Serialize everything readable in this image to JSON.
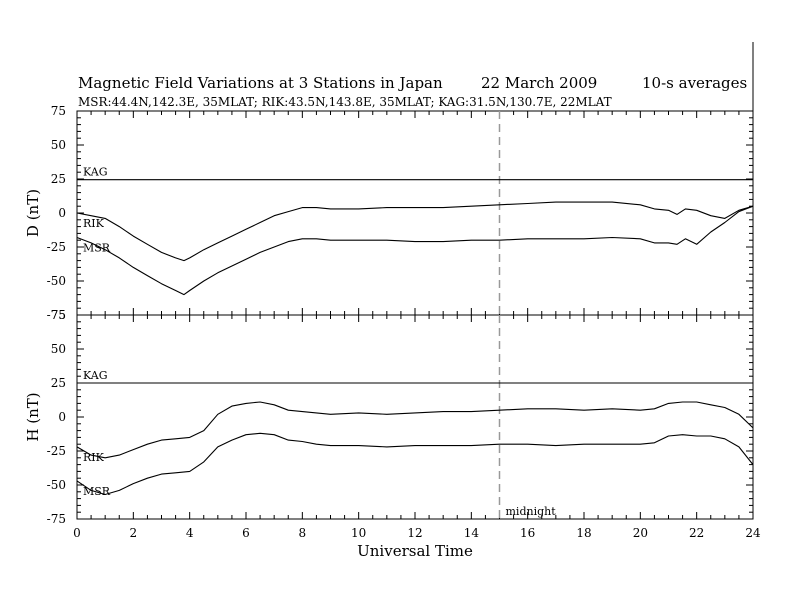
{
  "title": {
    "main": "Magnetic Field Variations at 3 Stations in Japan",
    "date": "22 March   2009",
    "avg": "10-s averages",
    "stations": "MSR:44.4N,142.3E, 35MLAT;  RIK:43.5N,143.8E, 35MLAT;  KAG:31.5N,130.7E, 22MLAT"
  },
  "chart_data": [
    {
      "type": "line",
      "panel": "D",
      "ylabel": "D (nT)",
      "ylim": [
        -75,
        75
      ],
      "yticks": [
        "75",
        "50",
        "25",
        "0",
        "-25",
        "-50",
        "-75"
      ],
      "xlim": [
        0,
        24
      ],
      "series": [
        {
          "name": "KAG",
          "x": [
            0,
            24
          ],
          "y": [
            24.5,
            24.5
          ]
        },
        {
          "name": "RIK",
          "x": [
            0,
            0.5,
            1,
            1.5,
            2,
            2.5,
            3,
            3.5,
            3.8,
            4,
            4.5,
            5,
            5.5,
            6,
            6.5,
            7,
            7.5,
            8,
            8.5,
            9,
            10,
            11,
            12,
            13,
            14,
            15,
            16,
            17,
            18,
            19,
            20,
            20.5,
            21,
            21.3,
            21.6,
            22,
            22.5,
            23,
            23.5,
            24
          ],
          "y": [
            0,
            -2,
            -4,
            -10,
            -17,
            -23,
            -29,
            -33,
            -35,
            -33,
            -27,
            -22,
            -17,
            -12,
            -7,
            -2,
            1,
            4,
            4,
            3,
            3,
            4,
            4,
            4,
            5,
            6,
            7,
            8,
            8,
            8,
            6,
            3,
            2,
            -1,
            3,
            2,
            -2,
            -4,
            2,
            5
          ]
        },
        {
          "name": "MSR",
          "x": [
            0,
            0.5,
            1,
            1.5,
            2,
            2.5,
            3,
            3.5,
            3.8,
            4,
            4.5,
            5,
            5.5,
            6,
            6.5,
            7,
            7.5,
            8,
            8.5,
            9,
            10,
            11,
            12,
            13,
            14,
            15,
            16,
            17,
            18,
            19,
            20,
            20.5,
            21,
            21.3,
            21.6,
            22,
            22.5,
            23,
            23.5,
            24
          ],
          "y": [
            -18,
            -22,
            -27,
            -33,
            -40,
            -46,
            -52,
            -57,
            -60,
            -57,
            -50,
            -44,
            -39,
            -34,
            -29,
            -25,
            -21,
            -19,
            -19,
            -20,
            -20,
            -20,
            -21,
            -21,
            -20,
            -20,
            -19,
            -19,
            -19,
            -18,
            -19,
            -22,
            -22,
            -23,
            -19,
            -23,
            -14,
            -7,
            1,
            5
          ]
        }
      ],
      "annotations": [
        "KAG",
        "RIK",
        "MSR"
      ]
    },
    {
      "type": "line",
      "panel": "H",
      "ylabel": "H (nT)",
      "ylim": [
        -75,
        75
      ],
      "yticks": [
        "75",
        "50",
        "25",
        "0",
        "-25",
        "-50",
        "-75"
      ],
      "xlim": [
        0,
        24
      ],
      "xlabel": "Universal Time",
      "xticks": [
        "0",
        "2",
        "4",
        "6",
        "8",
        "10",
        "12",
        "14",
        "16",
        "18",
        "20",
        "22",
        "24"
      ],
      "series": [
        {
          "name": "KAG",
          "x": [
            0,
            24
          ],
          "y": [
            25,
            25
          ]
        },
        {
          "name": "RIK",
          "x": [
            0,
            0.5,
            1,
            1.5,
            2,
            2.5,
            3,
            3.5,
            4,
            4.5,
            5,
            5.5,
            6,
            6.5,
            7,
            7.5,
            8,
            8.5,
            9,
            10,
            11,
            12,
            13,
            14,
            15,
            16,
            17,
            18,
            19,
            20,
            20.5,
            21,
            21.5,
            22,
            22.5,
            23,
            23.5,
            24
          ],
          "y": [
            -22,
            -28,
            -30,
            -28,
            -24,
            -20,
            -17,
            -16,
            -15,
            -10,
            2,
            8,
            10,
            11,
            9,
            5,
            4,
            3,
            2,
            3,
            2,
            3,
            4,
            4,
            5,
            6,
            6,
            5,
            6,
            5,
            6,
            10,
            11,
            11,
            9,
            7,
            2,
            -8
          ]
        },
        {
          "name": "MSR",
          "x": [
            0,
            0.5,
            1,
            1.5,
            2,
            2.5,
            3,
            3.5,
            4,
            4.5,
            5,
            5.5,
            6,
            6.5,
            7,
            7.5,
            8,
            8.5,
            9,
            10,
            11,
            12,
            13,
            14,
            15,
            16,
            17,
            18,
            19,
            20,
            20.5,
            21,
            21.5,
            22,
            22.5,
            23,
            23.5,
            24
          ],
          "y": [
            -47,
            -54,
            -57,
            -54,
            -49,
            -45,
            -42,
            -41,
            -40,
            -33,
            -22,
            -17,
            -13,
            -12,
            -13,
            -17,
            -18,
            -20,
            -21,
            -21,
            -22,
            -21,
            -21,
            -21,
            -20,
            -20,
            -21,
            -20,
            -20,
            -20,
            -19,
            -14,
            -13,
            -14,
            -14,
            -16,
            -22,
            -35
          ]
        }
      ],
      "annotations": [
        "KAG",
        "RIK",
        "MSR",
        "midnight"
      ]
    }
  ],
  "midnight": {
    "x": 15,
    "label": "midnight"
  }
}
